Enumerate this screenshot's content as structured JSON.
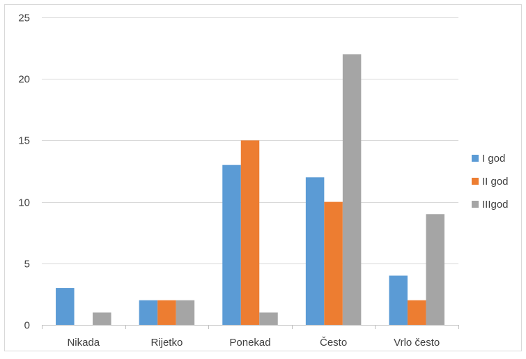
{
  "chart_data": {
    "type": "bar",
    "title": "",
    "xlabel": "",
    "ylabel": "",
    "categories": [
      "Nikada",
      "Rijetko",
      "Ponekad",
      "Često",
      "Vrlo često"
    ],
    "series": [
      {
        "name": "I god",
        "color": "#5B9BD5",
        "values": [
          3,
          2,
          13,
          12,
          4
        ]
      },
      {
        "name": "II god",
        "color": "#ED7D31",
        "values": [
          0,
          2,
          15,
          10,
          2
        ]
      },
      {
        "name": "IIIgod",
        "color": "#A5A5A5",
        "values": [
          1,
          2,
          1,
          22,
          9
        ]
      }
    ],
    "ylim": [
      0,
      25
    ],
    "yticks": [
      0,
      5,
      10,
      15,
      20,
      25
    ],
    "grid": true,
    "legend_position": "right"
  }
}
